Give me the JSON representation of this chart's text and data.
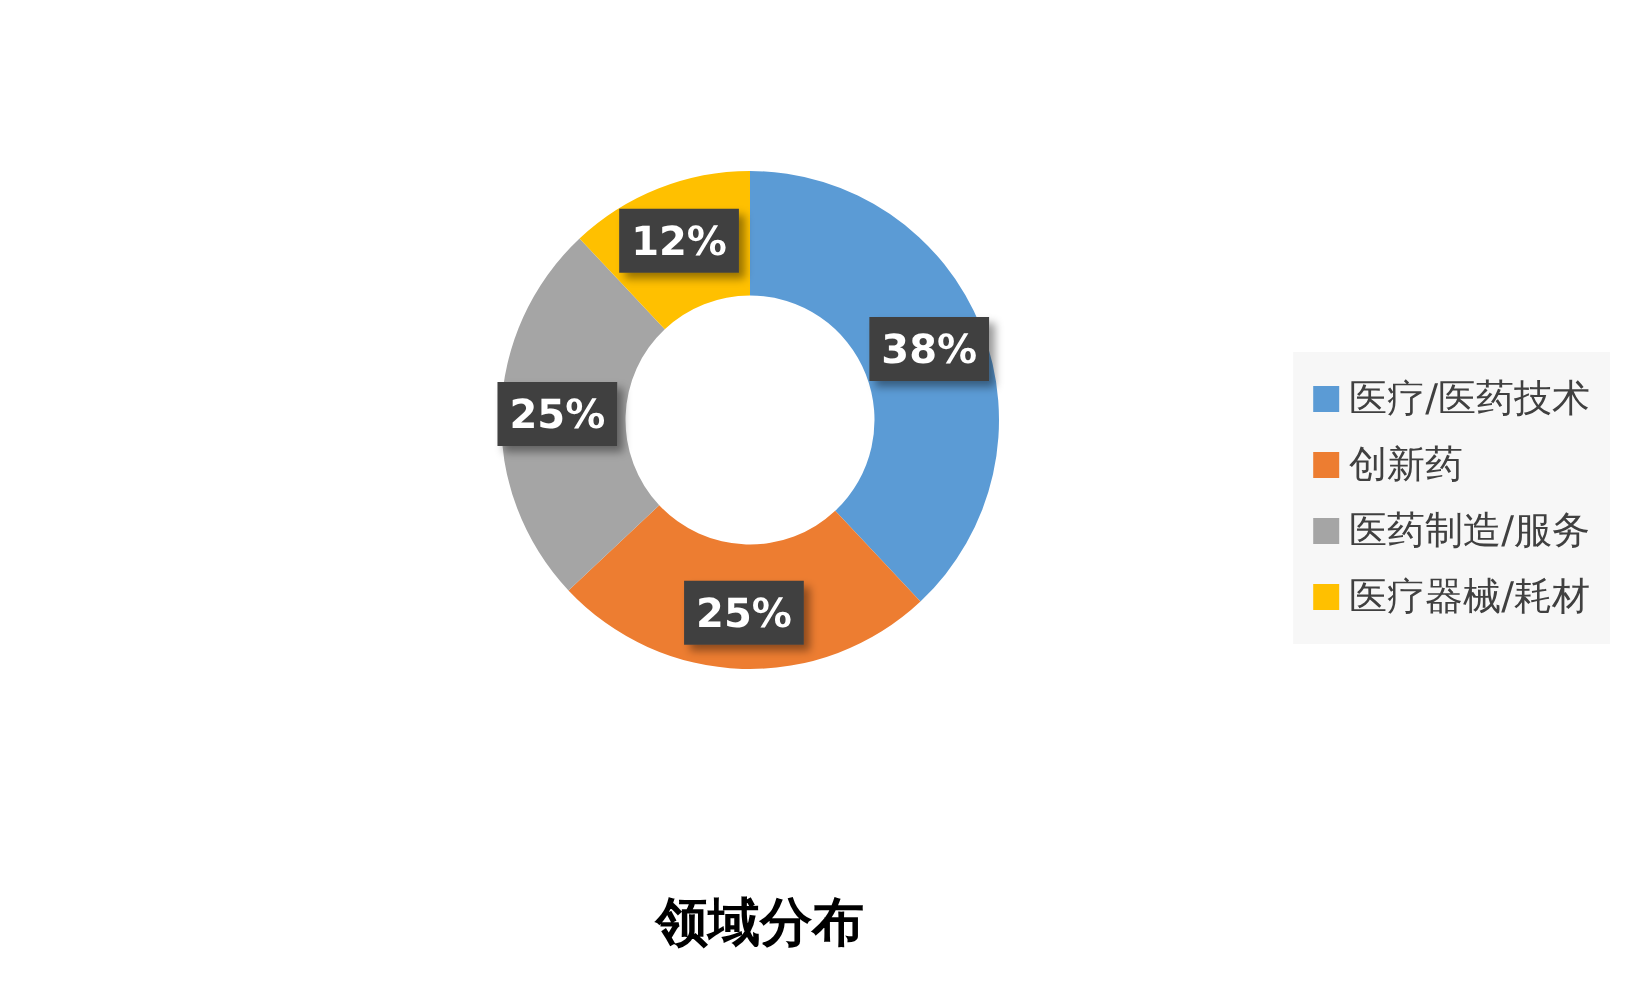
{
  "chart_data": {
    "type": "donut",
    "title": "领域分布",
    "categories": [
      "医疗/医药技术",
      "创新药",
      "医药制造/服务",
      "医疗器械/耗材"
    ],
    "values": [
      38,
      25,
      25,
      12
    ],
    "value_labels": [
      "38%",
      "25%",
      "25%",
      "12%"
    ],
    "colors": [
      "#5b9bd5",
      "#ed7d31",
      "#a5a5a5",
      "#ffc000"
    ],
    "legend": "right"
  }
}
